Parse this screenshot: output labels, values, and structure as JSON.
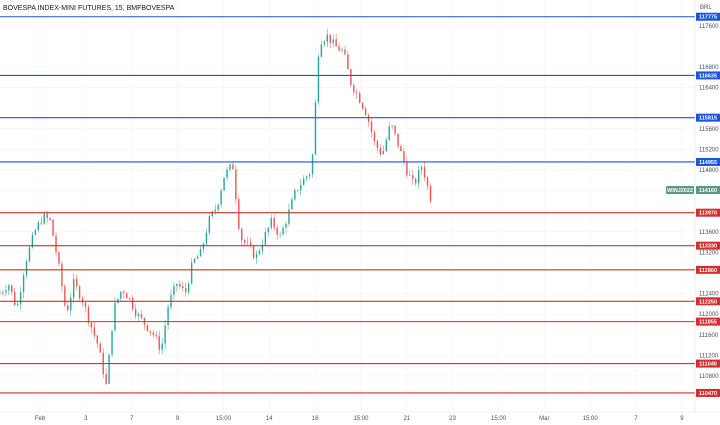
{
  "header": {
    "title": "BOVESPA INDEX-MINI FUTURES, 15, BMFBOVESPA",
    "currency": "BRL"
  },
  "colors": {
    "background": "#ffffff",
    "up_candle": "#26a69a",
    "down_candle": "#ef5350",
    "resistance_line": "#1e55d8",
    "support_line": "#d32f2f",
    "last_price_badge": "#5b9b7f",
    "axis_text": "#4a4f5c"
  },
  "chart_data": {
    "type": "candlestick",
    "symbol": "WINJ2022",
    "last_price": 114160,
    "y_axis_ticks": [
      117600,
      116800,
      116400,
      115600,
      115200,
      114800,
      114400,
      113600,
      113200,
      112400,
      112000,
      111600,
      111200,
      110800
    ],
    "x_axis_ticks": [
      "Feb",
      "3",
      "7",
      "9",
      "15:00",
      "14",
      "16",
      "15:00",
      "21",
      "23",
      "15:00",
      "Mar",
      "15:00",
      "7",
      "9"
    ],
    "horizontal_levels": [
      {
        "value": 117775,
        "label": "117775",
        "kind": "resistance"
      },
      {
        "value": 116635,
        "label": "116635",
        "kind": "resistance"
      },
      {
        "value": 115815,
        "label": "115815",
        "kind": "resistance"
      },
      {
        "value": 114955,
        "label": "114955",
        "kind": "resistance"
      },
      {
        "value": 113970,
        "label": "113970",
        "kind": "support"
      },
      {
        "value": 113330,
        "label": "113330",
        "kind": "support"
      },
      {
        "value": 112860,
        "label": "112860",
        "kind": "support"
      },
      {
        "value": 112250,
        "label": "112250",
        "kind": "support"
      },
      {
        "value": 111855,
        "label": "111855",
        "kind": "support"
      },
      {
        "value": 111040,
        "label": "111040",
        "kind": "support"
      },
      {
        "value": 110470,
        "label": "110470",
        "kind": "support"
      }
    ],
    "price_path": [
      [
        0,
        112400
      ],
      [
        0.8,
        112600
      ],
      [
        1.6,
        112100
      ],
      [
        2.4,
        113000
      ],
      [
        3.3,
        113600
      ],
      [
        4.1,
        113900
      ],
      [
        4.8,
        113800
      ],
      [
        5.6,
        112900
      ],
      [
        6.3,
        112000
      ],
      [
        7.0,
        112600
      ],
      [
        7.8,
        112300
      ],
      [
        8.6,
        111800
      ],
      [
        9.3,
        111400
      ],
      [
        10.1,
        110600
      ],
      [
        10.8,
        112100
      ],
      [
        11.6,
        112500
      ],
      [
        12.3,
        112300
      ],
      [
        13.0,
        112000
      ],
      [
        13.8,
        111800
      ],
      [
        14.6,
        111600
      ],
      [
        15.3,
        111300
      ],
      [
        16.0,
        112200
      ],
      [
        16.8,
        112600
      ],
      [
        17.6,
        112400
      ],
      [
        18.3,
        113000
      ],
      [
        19.1,
        113200
      ],
      [
        19.8,
        113800
      ],
      [
        20.6,
        114100
      ],
      [
        21.3,
        114700
      ],
      [
        22.1,
        114900
      ],
      [
        22.8,
        113500
      ],
      [
        23.6,
        113300
      ],
      [
        24.3,
        113100
      ],
      [
        25.1,
        113500
      ],
      [
        25.8,
        113800
      ],
      [
        26.6,
        113500
      ],
      [
        27.3,
        113900
      ],
      [
        28.1,
        114400
      ],
      [
        28.8,
        114600
      ],
      [
        29.6,
        114800
      ],
      [
        30.3,
        117300
      ],
      [
        31.1,
        117400
      ],
      [
        31.8,
        117200
      ],
      [
        32.6,
        117100
      ],
      [
        33.3,
        116500
      ],
      [
        34.1,
        116200
      ],
      [
        34.8,
        115900
      ],
      [
        35.6,
        115300
      ],
      [
        36.3,
        115100
      ],
      [
        37.1,
        115700
      ],
      [
        37.8,
        115300
      ],
      [
        38.6,
        114800
      ],
      [
        39.3,
        114500
      ],
      [
        40.1,
        114900
      ],
      [
        40.8,
        114300
      ],
      [
        41.1,
        114160
      ]
    ],
    "x_range_index": [
      0,
      66
    ],
    "y_range": [
      110100,
      118100
    ],
    "grid": true
  }
}
